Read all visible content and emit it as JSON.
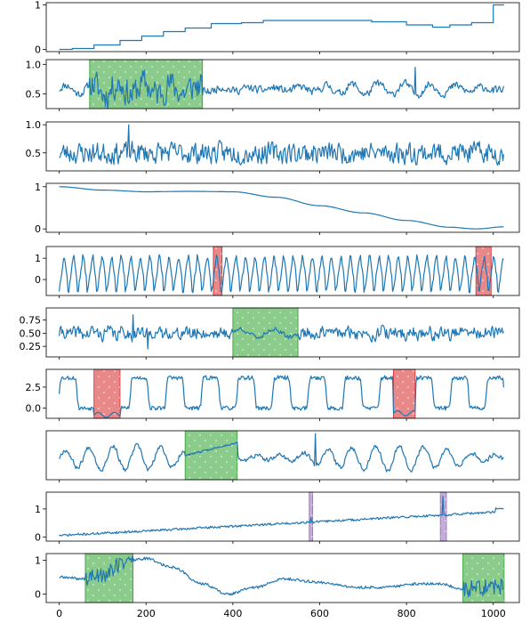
{
  "chart_data": {
    "type": "line",
    "layout": "10 stacked panels sharing one x axis",
    "xlim": [
      -30,
      1060
    ],
    "x_ticks": [
      0,
      200,
      400,
      600,
      800,
      1000
    ],
    "x_tick_labels": [
      "0",
      "200",
      "400",
      "600",
      "800",
      "1000"
    ],
    "line_color": "#1f77b4",
    "highlight_colors": {
      "green": "#2ca02c",
      "red": "#d62728",
      "purple": "#9467bd"
    },
    "panels": [
      {
        "id": "p1",
        "ylim": [
          -0.05,
          1.05
        ],
        "y_ticks": [
          0,
          1
        ],
        "y_tick_labels": [
          "0",
          "1"
        ],
        "kind": "step",
        "points": [
          [
            0,
            0
          ],
          [
            30,
            0.02
          ],
          [
            80,
            0.1
          ],
          [
            140,
            0.2
          ],
          [
            190,
            0.3
          ],
          [
            240,
            0.4
          ],
          [
            290,
            0.48
          ],
          [
            350,
            0.58
          ],
          [
            420,
            0.6
          ],
          [
            470,
            0.65
          ],
          [
            560,
            0.65
          ],
          [
            640,
            0.65
          ],
          [
            720,
            0.62
          ],
          [
            800,
            0.55
          ],
          [
            860,
            0.5
          ],
          [
            900,
            0.55
          ],
          [
            950,
            0.6
          ],
          [
            1000,
            1.0
          ],
          [
            1025,
            1.0
          ]
        ],
        "highlights": []
      },
      {
        "id": "p2",
        "ylim": [
          0.25,
          1.08
        ],
        "y_ticks": [
          0.5,
          1.0
        ],
        "y_tick_labels": [
          "0.5",
          "1.0"
        ],
        "kind": "noise",
        "seed": 11,
        "base": 0.58,
        "noise_amp": 0.06,
        "wave_amp": 0.1,
        "wave_period": 60,
        "bursts": [
          {
            "x0": 70,
            "x1": 330,
            "amp": 0.22
          }
        ],
        "spikes": [
          [
            820,
            0.95
          ]
        ],
        "highlights": [
          {
            "x0": 70,
            "x1": 330,
            "color": "green"
          }
        ]
      },
      {
        "id": "p3",
        "ylim": [
          0.18,
          1.05
        ],
        "y_ticks": [
          0.5,
          1.0
        ],
        "y_tick_labels": [
          "0.5",
          "1.0"
        ],
        "kind": "noise",
        "seed": 23,
        "base": 0.5,
        "noise_amp": 0.17,
        "wave_amp": 0.0,
        "wave_period": 40,
        "bursts": [],
        "spikes": [
          [
            160,
            1.0
          ]
        ],
        "highlights": []
      },
      {
        "id": "p4",
        "ylim": [
          -0.08,
          1.08
        ],
        "y_ticks": [
          0,
          1
        ],
        "y_tick_labels": [
          "0",
          "1"
        ],
        "kind": "smooth",
        "points": [
          [
            0,
            1.0
          ],
          [
            100,
            0.92
          ],
          [
            200,
            0.88
          ],
          [
            300,
            0.89
          ],
          [
            400,
            0.88
          ],
          [
            500,
            0.75
          ],
          [
            600,
            0.55
          ],
          [
            700,
            0.38
          ],
          [
            800,
            0.2
          ],
          [
            900,
            0.04
          ],
          [
            960,
            0.0
          ],
          [
            1025,
            0.05
          ]
        ],
        "highlights": []
      },
      {
        "id": "p5",
        "ylim": [
          -0.75,
          1.55
        ],
        "y_ticks": [
          0,
          1
        ],
        "y_tick_labels": [
          "0",
          "1"
        ],
        "kind": "oscillation",
        "seed": 37,
        "base": 0.35,
        "amp": 0.85,
        "period": 22,
        "noise_amp": 0.12,
        "highlights": [
          {
            "x0": 355,
            "x1": 375,
            "color": "red"
          },
          {
            "x0": 960,
            "x1": 995,
            "color": "red"
          }
        ]
      },
      {
        "id": "p6",
        "ylim": [
          0.05,
          0.98
        ],
        "y_ticks": [
          0.25,
          0.5,
          0.75
        ],
        "y_tick_labels": [
          "0.25",
          "0.50",
          "0.75"
        ],
        "kind": "noise",
        "seed": 41,
        "base": 0.5,
        "noise_amp": 0.11,
        "wave_amp": 0.04,
        "wave_period": 35,
        "bursts": [],
        "spikes": [
          [
            170,
            0.85
          ],
          [
            205,
            0.2
          ]
        ],
        "quiet": [
          {
            "x0": 400,
            "x1": 550,
            "amp": 0.04
          }
        ],
        "highlights": [
          {
            "x0": 400,
            "x1": 550,
            "color": "green"
          }
        ]
      },
      {
        "id": "p7",
        "ylim": [
          -1.2,
          4.6
        ],
        "y_ticks": [
          0,
          2.5
        ],
        "y_tick_labels": [
          "0.0",
          "2.5"
        ],
        "kind": "squarewave",
        "seed": 53,
        "low": 0.0,
        "high": 3.6,
        "period": 82,
        "noise_amp": 0.25,
        "dips": [
          {
            "x0": 80,
            "x1": 140,
            "value": -0.8
          },
          {
            "x0": 770,
            "x1": 820,
            "value": -0.6
          }
        ],
        "highlights": [
          {
            "x0": 80,
            "x1": 140,
            "color": "red"
          },
          {
            "x0": 770,
            "x1": 820,
            "color": "red"
          }
        ]
      },
      {
        "id": "p8",
        "ylim": [
          0.0,
          1.12
        ],
        "y_ticks": [],
        "y_tick_labels": [],
        "kind": "noise",
        "seed": 67,
        "base": 0.5,
        "noise_amp": 0.05,
        "wave_amp": 0.28,
        "wave_period": 55,
        "bursts": [],
        "spikes": [
          [
            590,
            1.05
          ]
        ],
        "ramp": {
          "x0": 290,
          "x1": 410,
          "y0": 0.55,
          "y1": 0.85
        },
        "highlights": [
          {
            "x0": 290,
            "x1": 410,
            "color": "green"
          }
        ]
      },
      {
        "id": "p9",
        "ylim": [
          -0.15,
          1.6
        ],
        "y_ticks": [
          0,
          1
        ],
        "y_tick_labels": [
          "0",
          "1"
        ],
        "kind": "trend",
        "seed": 71,
        "y0": 0.05,
        "y1": 0.88,
        "noise_amp": 0.04,
        "spikes": [
          [
            580,
            0.7
          ],
          [
            885,
            1.45
          ]
        ],
        "end_jump": {
          "x0": 1005,
          "value": 1.02
        },
        "highlights": [
          {
            "x0": 576,
            "x1": 584,
            "color": "purple"
          },
          {
            "x0": 878,
            "x1": 892,
            "color": "purple"
          }
        ]
      },
      {
        "id": "p10",
        "ylim": [
          -0.25,
          1.2
        ],
        "y_ticks": [
          0,
          1
        ],
        "y_tick_labels": [
          "0",
          "1"
        ],
        "kind": "smoothnoise",
        "seed": 89,
        "noise_amp": 0.04,
        "points": [
          [
            0,
            0.5
          ],
          [
            60,
            0.45
          ],
          [
            100,
            0.6
          ],
          [
            160,
            1.0
          ],
          [
            200,
            1.05
          ],
          [
            260,
            0.8
          ],
          [
            330,
            0.3
          ],
          [
            390,
            0.0
          ],
          [
            450,
            0.2
          ],
          [
            520,
            0.45
          ],
          [
            600,
            0.35
          ],
          [
            680,
            0.2
          ],
          [
            750,
            0.2
          ],
          [
            820,
            0.3
          ],
          [
            880,
            0.3
          ],
          [
            930,
            0.15
          ],
          [
            1025,
            0.2
          ]
        ],
        "bursts": [
          {
            "x0": 60,
            "x1": 170,
            "amp": 0.25
          },
          {
            "x0": 930,
            "x1": 1025,
            "amp": 0.25
          }
        ],
        "highlights": [
          {
            "x0": 60,
            "x1": 170,
            "color": "green"
          },
          {
            "x0": 930,
            "x1": 1025,
            "color": "green"
          }
        ]
      }
    ]
  }
}
